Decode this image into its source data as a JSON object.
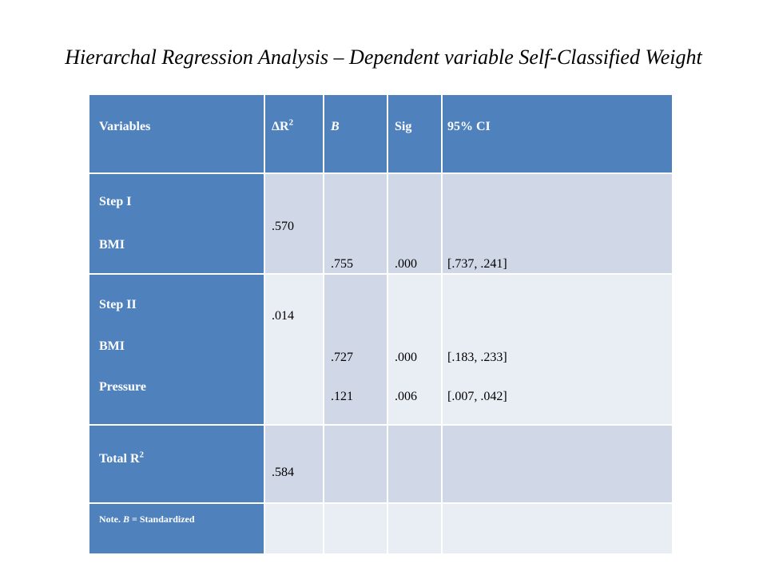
{
  "title": "Hierarchal Regression Analysis – Dependent variable Self-Classified Weight",
  "header": {
    "variables": "Variables",
    "delta_r2": "ΔR",
    "delta_r2_sup": "2",
    "b": "B",
    "sig": "Sig",
    "ci": "95% CI"
  },
  "step1": {
    "label_step": "Step I",
    "label_var": "BMI",
    "delta_r2": ".570",
    "b": ".755",
    "sig": ".000",
    "ci": "[.737, .241]"
  },
  "step2": {
    "label_step": "Step II",
    "label_var1": "BMI",
    "label_var2": "Pressure",
    "delta_r2": ".014",
    "b1": ".727",
    "b2": ".121",
    "sig1": ".000",
    "sig2": ".006",
    "ci1": "[.183, .233]",
    "ci2": "[.007, .042]"
  },
  "total": {
    "label": "Total R",
    "label_sup": "2",
    "value": ".584"
  },
  "note": {
    "prefix": "Note.",
    "b": "B",
    "suffix": "= Standardized"
  },
  "colors": {
    "header": "#4f81bd",
    "row_dark": "#d0d8e8",
    "row_light": "#e9edf4"
  }
}
